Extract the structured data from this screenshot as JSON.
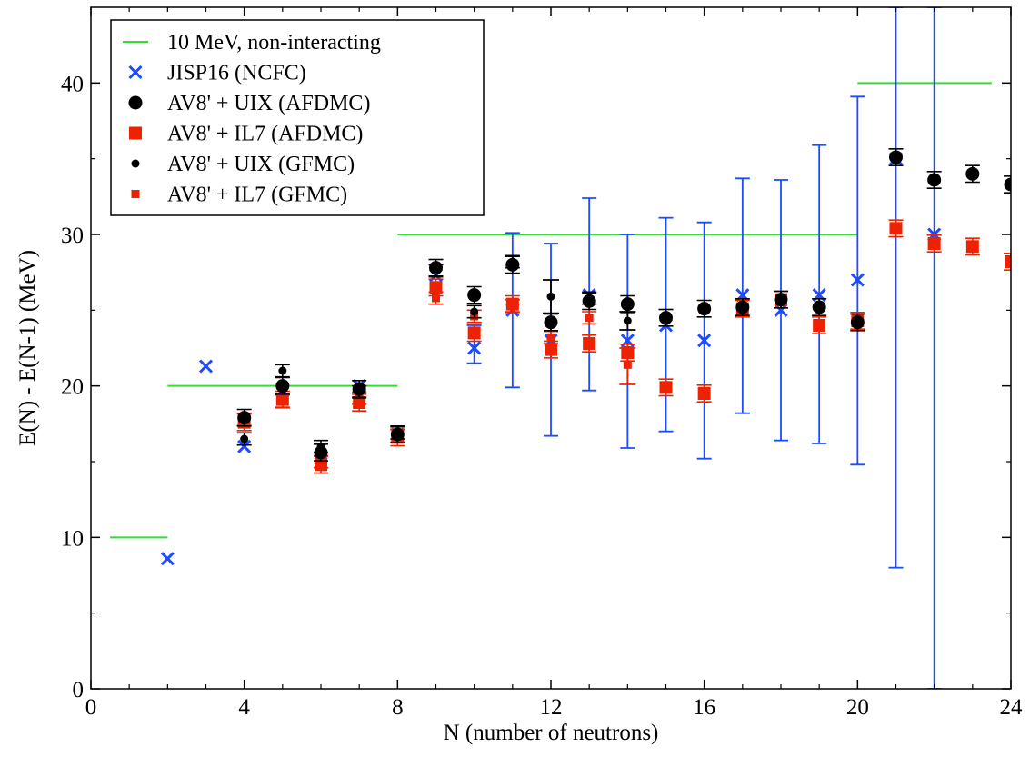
{
  "chart_data": {
    "type": "scatter",
    "title": "",
    "xlabel": "N  (number of neutrons)",
    "ylabel": "E(N) - E(N-1)  (MeV)",
    "xlim": [
      0,
      24
    ],
    "ylim": [
      0,
      45
    ],
    "xticks": [
      0,
      4,
      8,
      12,
      16,
      20,
      24
    ],
    "yticks": [
      0,
      10,
      20,
      30,
      40
    ],
    "legend_position": "top-left",
    "grid": false,
    "series": [
      {
        "name": "10 MeV, non-interacting",
        "kind": "step-line",
        "color": "#33dd33",
        "segments": [
          [
            0.5,
            2,
            10
          ],
          [
            2,
            8,
            20
          ],
          [
            8,
            20,
            30
          ],
          [
            20,
            23.5,
            40
          ]
        ]
      },
      {
        "name": "JISP16 (NCFC)",
        "kind": "cross",
        "color": "#1e4bff",
        "points": [
          {
            "x": 2,
            "y": 8.6
          },
          {
            "x": 3,
            "y": 21.3
          },
          {
            "x": 4,
            "y": 16.0
          },
          {
            "x": 5,
            "y": 19.7
          },
          {
            "x": 6,
            "y": 14.9
          },
          {
            "x": 7,
            "y": 20.0
          },
          {
            "x": 8,
            "y": 16.8
          },
          {
            "x": 9,
            "y": 27.3
          },
          {
            "x": 10,
            "y": 22.5,
            "err": [
              21.5,
              24.0
            ]
          },
          {
            "x": 11,
            "y": 25.0,
            "err": [
              19.9,
              30.1
            ]
          },
          {
            "x": 12,
            "y": 23.0,
            "err": [
              16.7,
              29.4
            ]
          },
          {
            "x": 13,
            "y": 26.0,
            "err": [
              19.7,
              32.4
            ]
          },
          {
            "x": 14,
            "y": 23.0,
            "err": [
              15.9,
              30.0
            ]
          },
          {
            "x": 15,
            "y": 24.0,
            "err": [
              17.0,
              31.1
            ]
          },
          {
            "x": 16,
            "y": 23.0,
            "err": [
              15.2,
              30.8
            ]
          },
          {
            "x": 17,
            "y": 26.0,
            "err": [
              18.2,
              33.7
            ]
          },
          {
            "x": 18,
            "y": 25.0,
            "err": [
              16.4,
              33.6
            ]
          },
          {
            "x": 19,
            "y": 26.0,
            "err": [
              16.2,
              35.9
            ]
          },
          {
            "x": 20,
            "y": 27.0,
            "err": [
              14.8,
              39.1
            ]
          },
          {
            "x": 21,
            "y": 35.0,
            "err": [
              8.0,
              45.0
            ]
          },
          {
            "x": 22,
            "y": 30.0,
            "err": [
              0.0,
              45.0
            ]
          }
        ]
      },
      {
        "name": "AV8' + UIX (AFDMC)",
        "kind": "big-circle",
        "color": "#000000",
        "points": [
          {
            "x": 4,
            "y": 17.9
          },
          {
            "x": 5,
            "y": 20.0
          },
          {
            "x": 6,
            "y": 15.6
          },
          {
            "x": 7,
            "y": 19.8
          },
          {
            "x": 8,
            "y": 16.8
          },
          {
            "x": 9,
            "y": 27.8
          },
          {
            "x": 10,
            "y": 26.0
          },
          {
            "x": 11,
            "y": 28.0
          },
          {
            "x": 12,
            "y": 24.2
          },
          {
            "x": 13,
            "y": 25.6
          },
          {
            "x": 14,
            "y": 25.4
          },
          {
            "x": 15,
            "y": 24.5
          },
          {
            "x": 16,
            "y": 25.1
          },
          {
            "x": 17,
            "y": 25.2
          },
          {
            "x": 18,
            "y": 25.7
          },
          {
            "x": 19,
            "y": 25.2
          },
          {
            "x": 20,
            "y": 24.2
          },
          {
            "x": 21,
            "y": 35.1
          },
          {
            "x": 22,
            "y": 33.6
          },
          {
            "x": 23,
            "y": 34.0
          },
          {
            "x": 24,
            "y": 33.3
          }
        ]
      },
      {
        "name": "AV8' + IL7 (AFDMC)",
        "kind": "big-square",
        "color": "#ee2200",
        "points": [
          {
            "x": 4,
            "y": 17.6
          },
          {
            "x": 5,
            "y": 19.1
          },
          {
            "x": 6,
            "y": 14.8
          },
          {
            "x": 7,
            "y": 18.9
          },
          {
            "x": 8,
            "y": 16.6
          },
          {
            "x": 9,
            "y": 26.5
          },
          {
            "x": 10,
            "y": 23.5
          },
          {
            "x": 11,
            "y": 25.4
          },
          {
            "x": 12,
            "y": 22.4
          },
          {
            "x": 13,
            "y": 22.8
          },
          {
            "x": 14,
            "y": 22.2
          },
          {
            "x": 15,
            "y": 19.9
          },
          {
            "x": 16,
            "y": 19.5
          },
          {
            "x": 17,
            "y": 25.1
          },
          {
            "x": 18,
            "y": 25.7
          },
          {
            "x": 19,
            "y": 24.0
          },
          {
            "x": 20,
            "y": 24.3
          },
          {
            "x": 21,
            "y": 30.4
          },
          {
            "x": 22,
            "y": 29.4
          },
          {
            "x": 23,
            "y": 29.2
          },
          {
            "x": 24,
            "y": 28.2
          }
        ]
      },
      {
        "name": "AV8' + UIX (GFMC)",
        "kind": "small-circle",
        "color": "#000000",
        "points": [
          {
            "x": 4,
            "y": 16.5
          },
          {
            "x": 5,
            "y": 21.0
          },
          {
            "x": 6,
            "y": 16.0
          },
          {
            "x": 7,
            "y": 19.6
          },
          {
            "x": 8,
            "y": 16.9
          },
          {
            "x": 9,
            "y": 27.6
          },
          {
            "x": 10,
            "y": 24.9
          },
          {
            "x": 11,
            "y": 28.2
          },
          {
            "x": 12,
            "y": 25.9,
            "err": [
              24.8,
              27.0
            ]
          },
          {
            "x": 13,
            "y": 25.8
          },
          {
            "x": 14,
            "y": 24.3,
            "err": [
              23.7,
              24.9
            ]
          }
        ]
      },
      {
        "name": "AV8' + IL7 (GFMC)",
        "kind": "small-square",
        "color": "#ee2200",
        "points": [
          {
            "x": 4,
            "y": 17.8
          },
          {
            "x": 5,
            "y": 19.0
          },
          {
            "x": 6,
            "y": 15.0
          },
          {
            "x": 7,
            "y": 19.2
          },
          {
            "x": 8,
            "y": 16.7
          },
          {
            "x": 9,
            "y": 25.8
          },
          {
            "x": 10,
            "y": 24.6
          },
          {
            "x": 11,
            "y": 25.3
          },
          {
            "x": 12,
            "y": 23.2
          },
          {
            "x": 13,
            "y": 24.5
          },
          {
            "x": 14,
            "y": 21.4,
            "err": [
              20.1,
              22.5
            ]
          }
        ]
      }
    ]
  }
}
